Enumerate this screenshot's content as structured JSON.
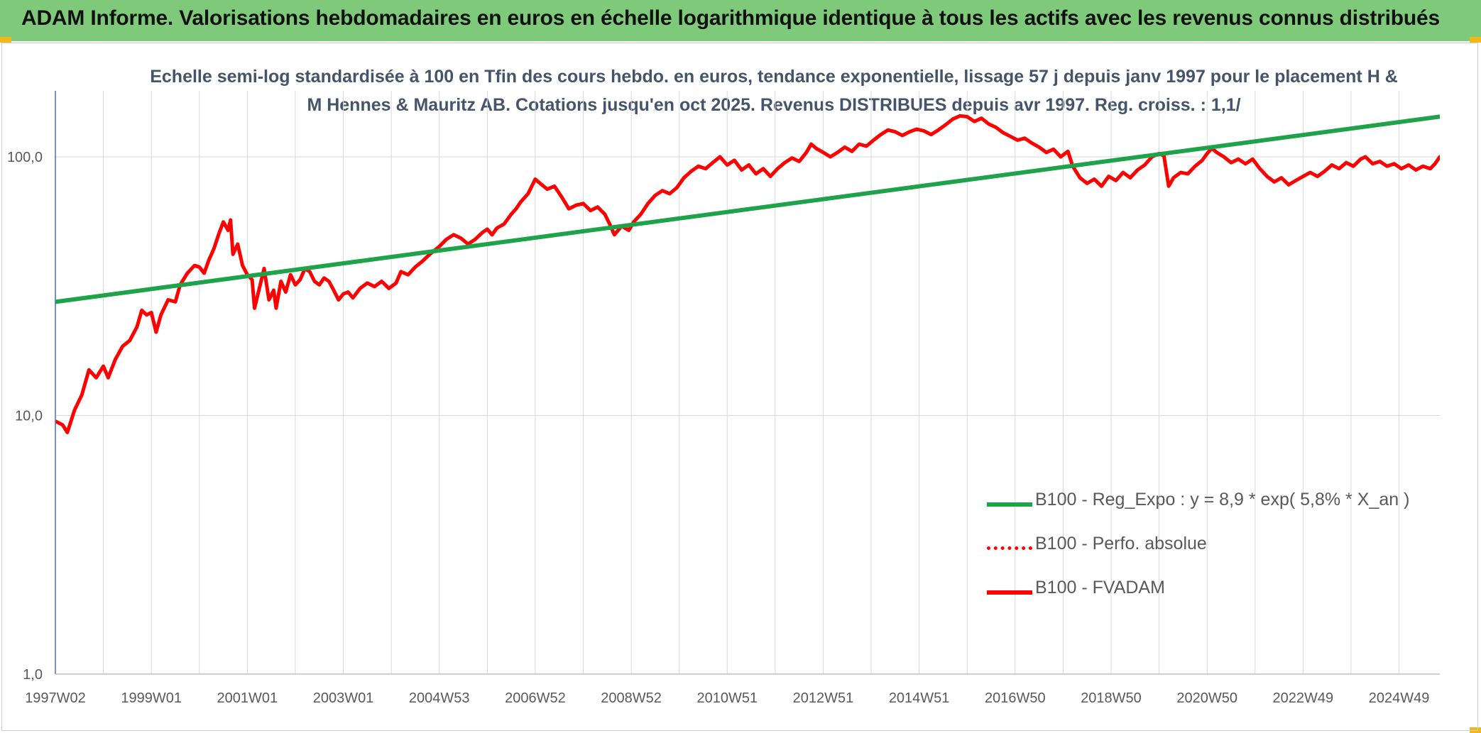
{
  "header": {
    "title": "ADAM Informe. Valorisations hebdomadaires en euros en échelle logarithmique identique à tous les actifs avec les revenus connus distribués",
    "background": "#7ec97a",
    "corner_color": "#f1b817"
  },
  "chart_data": {
    "type": "line",
    "title": "Echelle semi-log standardisée à 100 en Tfin des cours hebdo. en euros, tendance exponentielle, lissage 57 j depuis janv 1997 pour le placement H & M Hennes & Mauritz AB. Cotations jusqu'en oct 2025. Revenus DISTRIBUES depuis avr 1997. Reg. croiss. : 1,1/",
    "y_scale": "log",
    "ylim": [
      1,
      180
    ],
    "xlim": [
      1997.0,
      2025.85
    ],
    "y_ticks": [
      {
        "value": 1,
        "label": "1,0"
      },
      {
        "value": 10,
        "label": "10,0"
      },
      {
        "value": 100,
        "label": "100,0"
      }
    ],
    "x_ticks": [
      {
        "value": 1997.0,
        "label": "1997W02"
      },
      {
        "value": 1999.0,
        "label": "1999W01"
      },
      {
        "value": 2001.0,
        "label": "2001W01"
      },
      {
        "value": 2003.0,
        "label": "2003W01"
      },
      {
        "value": 2005.0,
        "label": "2004W53"
      },
      {
        "value": 2007.0,
        "label": "2006W52"
      },
      {
        "value": 2009.0,
        "label": "2008W52"
      },
      {
        "value": 2011.0,
        "label": "2010W51"
      },
      {
        "value": 2013.0,
        "label": "2012W51"
      },
      {
        "value": 2015.0,
        "label": "2014W51"
      },
      {
        "value": 2017.0,
        "label": "2016W50"
      },
      {
        "value": 2019.0,
        "label": "2018W50"
      },
      {
        "value": 2021.0,
        "label": "2020W50"
      },
      {
        "value": 2023.0,
        "label": "2022W49"
      },
      {
        "value": 2025.0,
        "label": "2024W49"
      }
    ],
    "x_minor_ticks": [
      1998.0,
      2000.0,
      2002.0,
      2004.0,
      2006.0,
      2008.0,
      2010.0,
      2012.0,
      2014.0,
      2016.0,
      2018.0,
      2020.0,
      2022.0,
      2024.0
    ],
    "grid": true,
    "legend_position": "bottom-right",
    "series": [
      {
        "name": "B100 - Reg_Expo : y = 8,9 * exp( 5,8% *  X_an )",
        "color": "#1fa34a",
        "style": "solid",
        "points": [
          [
            1997.0,
            27.5
          ],
          [
            2025.85,
            143
          ]
        ]
      },
      {
        "name": "B100 - Perfo. absolue",
        "color": "#ff0000",
        "style": "dotted",
        "points": []
      },
      {
        "name": "B100 - FVADAM",
        "color": "#ff0000",
        "style": "solid",
        "points": [
          [
            1997.0,
            9.5
          ],
          [
            1997.15,
            9.2
          ],
          [
            1997.25,
            8.6
          ],
          [
            1997.4,
            10.5
          ],
          [
            1997.55,
            12.0
          ],
          [
            1997.7,
            15.0
          ],
          [
            1997.85,
            14.0
          ],
          [
            1998.0,
            15.5
          ],
          [
            1998.1,
            14.0
          ],
          [
            1998.25,
            16.5
          ],
          [
            1998.4,
            18.5
          ],
          [
            1998.55,
            19.5
          ],
          [
            1998.7,
            22.0
          ],
          [
            1998.8,
            25.5
          ],
          [
            1998.9,
            24.5
          ],
          [
            1999.0,
            25.0
          ],
          [
            1999.1,
            21.0
          ],
          [
            1999.2,
            24.5
          ],
          [
            1999.35,
            28.0
          ],
          [
            1999.5,
            27.5
          ],
          [
            1999.6,
            32.0
          ],
          [
            1999.75,
            35.5
          ],
          [
            1999.9,
            38.0
          ],
          [
            2000.0,
            37.5
          ],
          [
            2000.1,
            35.5
          ],
          [
            2000.2,
            40.0
          ],
          [
            2000.3,
            44.0
          ],
          [
            2000.4,
            50.0
          ],
          [
            2000.5,
            56.0
          ],
          [
            2000.6,
            52.0
          ],
          [
            2000.65,
            57.0
          ],
          [
            2000.7,
            42.0
          ],
          [
            2000.8,
            46.0
          ],
          [
            2000.9,
            38.0
          ],
          [
            2001.0,
            35.0
          ],
          [
            2001.1,
            33.5
          ],
          [
            2001.15,
            26.0
          ],
          [
            2001.25,
            31.0
          ],
          [
            2001.35,
            37.0
          ],
          [
            2001.45,
            28.0
          ],
          [
            2001.55,
            30.5
          ],
          [
            2001.6,
            26.0
          ],
          [
            2001.7,
            33.0
          ],
          [
            2001.8,
            30.0
          ],
          [
            2001.9,
            35.0
          ],
          [
            2002.0,
            32.0
          ],
          [
            2002.1,
            33.5
          ],
          [
            2002.2,
            37.0
          ],
          [
            2002.3,
            36.0
          ],
          [
            2002.4,
            33.0
          ],
          [
            2002.5,
            32.0
          ],
          [
            2002.6,
            34.0
          ],
          [
            2002.7,
            33.0
          ],
          [
            2002.8,
            30.5
          ],
          [
            2002.9,
            28.0
          ],
          [
            2003.0,
            29.5
          ],
          [
            2003.1,
            30.0
          ],
          [
            2003.2,
            28.5
          ],
          [
            2003.35,
            31.0
          ],
          [
            2003.5,
            32.5
          ],
          [
            2003.65,
            31.5
          ],
          [
            2003.8,
            33.0
          ],
          [
            2003.95,
            31.0
          ],
          [
            2004.1,
            32.5
          ],
          [
            2004.2,
            36.0
          ],
          [
            2004.35,
            35.0
          ],
          [
            2004.5,
            37.5
          ],
          [
            2004.65,
            39.5
          ],
          [
            2004.8,
            42.0
          ],
          [
            2005.0,
            45.0
          ],
          [
            2005.15,
            48.0
          ],
          [
            2005.3,
            50.0
          ],
          [
            2005.45,
            48.5
          ],
          [
            2005.6,
            46.0
          ],
          [
            2005.75,
            48.0
          ],
          [
            2005.9,
            51.0
          ],
          [
            2006.0,
            52.5
          ],
          [
            2006.1,
            50.0
          ],
          [
            2006.2,
            53.0
          ],
          [
            2006.35,
            55.0
          ],
          [
            2006.5,
            60.0
          ],
          [
            2006.6,
            63.0
          ],
          [
            2006.7,
            67.0
          ],
          [
            2006.85,
            72.0
          ],
          [
            2007.0,
            82.0
          ],
          [
            2007.1,
            79.0
          ],
          [
            2007.25,
            75.0
          ],
          [
            2007.4,
            77.0
          ],
          [
            2007.55,
            70.0
          ],
          [
            2007.7,
            63.0
          ],
          [
            2007.85,
            65.0
          ],
          [
            2008.0,
            66.0
          ],
          [
            2008.15,
            62.0
          ],
          [
            2008.3,
            64.0
          ],
          [
            2008.45,
            60.0
          ],
          [
            2008.55,
            55.0
          ],
          [
            2008.65,
            50.0
          ],
          [
            2008.8,
            54.0
          ],
          [
            2008.95,
            52.0
          ],
          [
            2009.05,
            56.0
          ],
          [
            2009.2,
            60.0
          ],
          [
            2009.35,
            66.0
          ],
          [
            2009.5,
            71.0
          ],
          [
            2009.65,
            74.0
          ],
          [
            2009.8,
            72.0
          ],
          [
            2009.95,
            76.0
          ],
          [
            2010.1,
            83.0
          ],
          [
            2010.25,
            88.0
          ],
          [
            2010.4,
            92.0
          ],
          [
            2010.55,
            90.0
          ],
          [
            2010.7,
            95.0
          ],
          [
            2010.85,
            100.0
          ],
          [
            2011.0,
            93.0
          ],
          [
            2011.15,
            97.0
          ],
          [
            2011.3,
            89.0
          ],
          [
            2011.45,
            93.0
          ],
          [
            2011.6,
            86.0
          ],
          [
            2011.75,
            90.0
          ],
          [
            2011.9,
            84.0
          ],
          [
            2012.05,
            90.0
          ],
          [
            2012.2,
            95.0
          ],
          [
            2012.35,
            99.0
          ],
          [
            2012.5,
            96.0
          ],
          [
            2012.65,
            104.0
          ],
          [
            2012.75,
            112.0
          ],
          [
            2012.85,
            108.0
          ],
          [
            2013.0,
            104.0
          ],
          [
            2013.15,
            100.0
          ],
          [
            2013.3,
            104.0
          ],
          [
            2013.45,
            109.0
          ],
          [
            2013.6,
            105.0
          ],
          [
            2013.75,
            112.0
          ],
          [
            2013.9,
            110.0
          ],
          [
            2014.05,
            116.0
          ],
          [
            2014.2,
            122.0
          ],
          [
            2014.35,
            127.0
          ],
          [
            2014.5,
            125.0
          ],
          [
            2014.65,
            121.0
          ],
          [
            2014.8,
            125.0
          ],
          [
            2014.95,
            128.0
          ],
          [
            2015.1,
            126.0
          ],
          [
            2015.25,
            122.0
          ],
          [
            2015.4,
            127.0
          ],
          [
            2015.55,
            133.0
          ],
          [
            2015.7,
            140.0
          ],
          [
            2015.85,
            144.0
          ],
          [
            2016.0,
            143.0
          ],
          [
            2016.15,
            137.0
          ],
          [
            2016.3,
            141.0
          ],
          [
            2016.45,
            134.0
          ],
          [
            2016.6,
            130.0
          ],
          [
            2016.75,
            124.0
          ],
          [
            2016.9,
            120.0
          ],
          [
            2017.05,
            116.0
          ],
          [
            2017.2,
            118.0
          ],
          [
            2017.35,
            113.0
          ],
          [
            2017.5,
            109.0
          ],
          [
            2017.65,
            104.0
          ],
          [
            2017.8,
            107.0
          ],
          [
            2017.95,
            100.0
          ],
          [
            2018.1,
            105.0
          ],
          [
            2018.2,
            92.0
          ],
          [
            2018.35,
            83.0
          ],
          [
            2018.5,
            79.0
          ],
          [
            2018.65,
            82.0
          ],
          [
            2018.8,
            77.0
          ],
          [
            2018.95,
            84.0
          ],
          [
            2019.1,
            81.0
          ],
          [
            2019.25,
            87.0
          ],
          [
            2019.4,
            83.0
          ],
          [
            2019.55,
            89.0
          ],
          [
            2019.7,
            93.0
          ],
          [
            2019.85,
            100.0
          ],
          [
            2020.0,
            103.0
          ],
          [
            2020.1,
            101.0
          ],
          [
            2020.2,
            77.0
          ],
          [
            2020.3,
            83.0
          ],
          [
            2020.45,
            87.0
          ],
          [
            2020.6,
            86.0
          ],
          [
            2020.75,
            92.0
          ],
          [
            2020.9,
            97.0
          ],
          [
            2021.0,
            103.0
          ],
          [
            2021.1,
            108.0
          ],
          [
            2021.2,
            104.0
          ],
          [
            2021.35,
            100.0
          ],
          [
            2021.5,
            95.0
          ],
          [
            2021.65,
            98.0
          ],
          [
            2021.8,
            94.0
          ],
          [
            2021.95,
            98.0
          ],
          [
            2022.1,
            90.0
          ],
          [
            2022.25,
            84.0
          ],
          [
            2022.4,
            80.0
          ],
          [
            2022.55,
            83.0
          ],
          [
            2022.7,
            78.0
          ],
          [
            2022.85,
            81.0
          ],
          [
            2023.0,
            84.0
          ],
          [
            2023.15,
            87.0
          ],
          [
            2023.3,
            84.0
          ],
          [
            2023.45,
            88.0
          ],
          [
            2023.6,
            93.0
          ],
          [
            2023.75,
            90.0
          ],
          [
            2023.9,
            95.0
          ],
          [
            2024.05,
            92.0
          ],
          [
            2024.2,
            98.0
          ],
          [
            2024.3,
            100.0
          ],
          [
            2024.45,
            94.0
          ],
          [
            2024.6,
            96.0
          ],
          [
            2024.75,
            92.0
          ],
          [
            2024.9,
            94.0
          ],
          [
            2025.05,
            90.0
          ],
          [
            2025.2,
            93.0
          ],
          [
            2025.35,
            89.0
          ],
          [
            2025.5,
            92.0
          ],
          [
            2025.65,
            90.0
          ],
          [
            2025.75,
            94.0
          ],
          [
            2025.85,
            100.0
          ]
        ]
      }
    ]
  }
}
